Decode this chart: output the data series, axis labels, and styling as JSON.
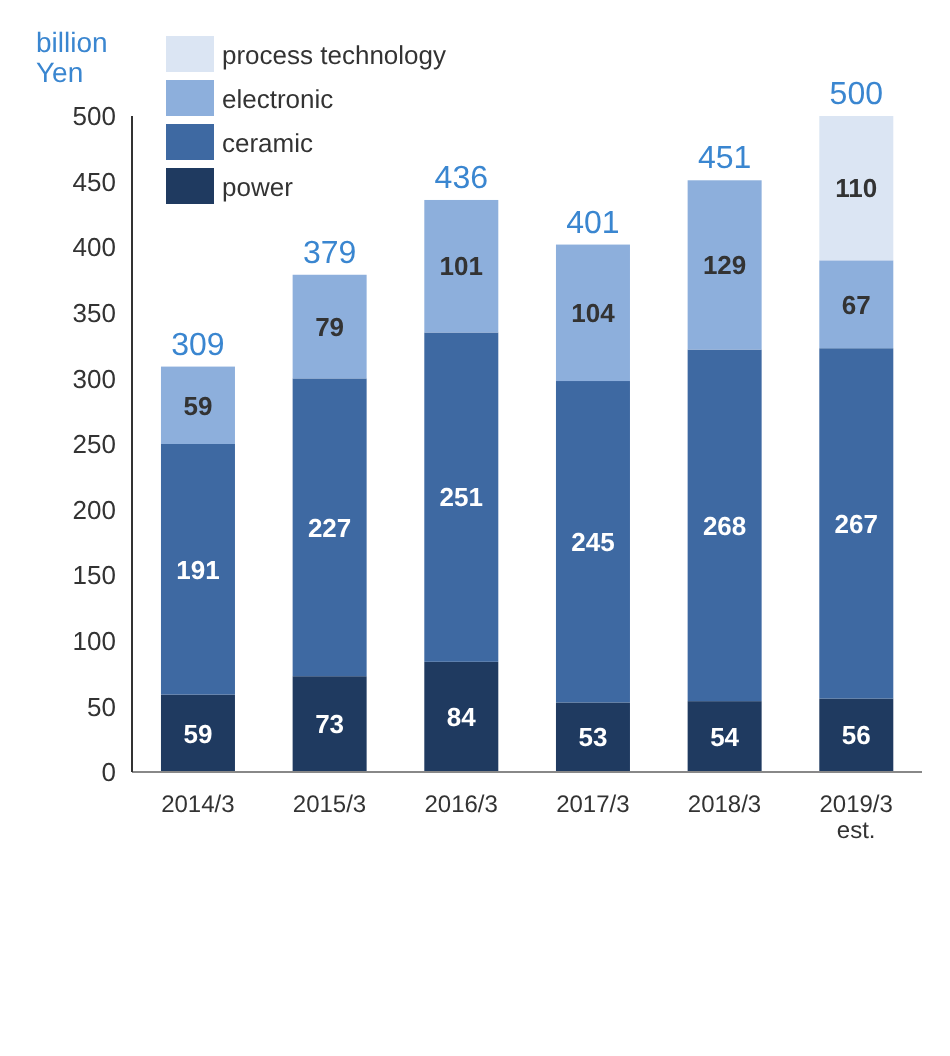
{
  "chart_data": {
    "type": "bar",
    "ylabel": "billion Yen",
    "categories": [
      "2014/3",
      "2015/3",
      "2016/3",
      "2017/3",
      "2018/3",
      "2019/3 est."
    ],
    "series": [
      {
        "name": "power",
        "color": "#1f3a60",
        "values": [
          59,
          73,
          84,
          53,
          54,
          56
        ]
      },
      {
        "name": "ceramic",
        "color": "#3e69a2",
        "values": [
          191,
          227,
          251,
          245,
          268,
          267
        ]
      },
      {
        "name": "electronic",
        "color": "#8dafdc",
        "values": [
          59,
          79,
          101,
          104,
          129,
          67
        ]
      },
      {
        "name": "process technology",
        "color": "#dbe5f3",
        "values": [
          null,
          null,
          null,
          null,
          null,
          110
        ]
      }
    ],
    "stacked": true,
    "data_labels": true,
    "totals": [
      "309",
      "379",
      "436",
      "401",
      "451",
      "500"
    ],
    "ylim": [
      0,
      500
    ],
    "yticks": [
      0,
      50,
      100,
      150,
      200,
      250,
      300,
      350,
      400,
      450,
      500
    ],
    "grid": false,
    "legend": "top left"
  }
}
